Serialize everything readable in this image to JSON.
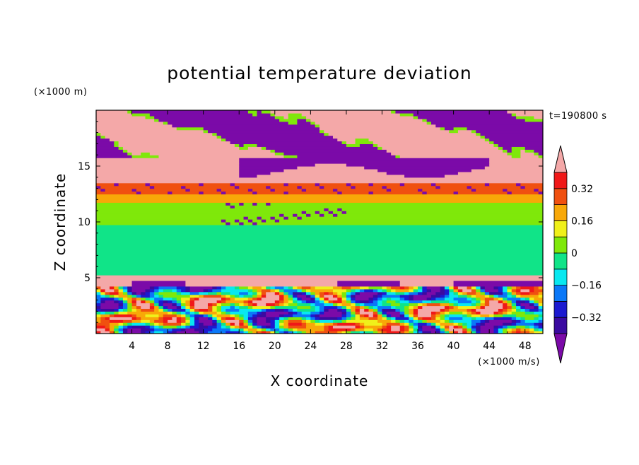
{
  "chart_data": {
    "type": "heatmap",
    "title": "potential temperature deviation",
    "xlabel": "X coordinate",
    "ylabel": "Z coordinate",
    "x_unit": "(×1000 m/s)",
    "y_unit": "(×1000 m)",
    "time_label": "t=190800 s",
    "xlim": [
      0,
      50
    ],
    "ylim": [
      0,
      20
    ],
    "x_ticks": [
      4,
      8,
      12,
      16,
      20,
      24,
      28,
      32,
      36,
      40,
      44,
      48
    ],
    "y_ticks": [
      5,
      10,
      15
    ],
    "colorbar": {
      "levels": [
        -0.4,
        -0.32,
        -0.24,
        -0.16,
        -0.08,
        0,
        0.08,
        0.16,
        0.24,
        0.32,
        0.4
      ],
      "tick_labels": [
        "0.32",
        "0.16",
        "0",
        "−0.16",
        "−0.32"
      ],
      "tick_values": [
        0.32,
        0.16,
        0,
        -0.16,
        -0.32
      ],
      "colors": [
        "#7b0aa8",
        "#3a0aa0",
        "#1c1ad0",
        "#0a78f8",
        "#08e8f0",
        "#10e488",
        "#7fe80a",
        "#f0f01a",
        "#f8a808",
        "#f05010",
        "#f01818",
        "#f4a8a8"
      ],
      "extend": "both"
    },
    "layers": [
      {
        "z": [
          0,
          1.2
        ],
        "level": "mixed turbulent (-0.4 to 0.4)"
      },
      {
        "z": [
          1.2,
          4.2
        ],
        "level": "mixed turbulent (-0.4 to 0.4)"
      },
      {
        "z": [
          4.2,
          5.2
        ],
        "value": 0.44
      },
      {
        "z": [
          5.2,
          9.8
        ],
        "value": -0.04
      },
      {
        "z": [
          9.8,
          11.8
        ],
        "value": 0.04
      },
      {
        "z": [
          11.8,
          12.4
        ],
        "value": 0.2
      },
      {
        "z": [
          12.4,
          13.4
        ],
        "value": 0.28
      },
      {
        "z": [
          13.4,
          15.8
        ],
        "value": 0.44
      },
      {
        "z": [
          15.8,
          20
        ],
        "value": "alternating -0.44 / 0.44"
      }
    ]
  }
}
